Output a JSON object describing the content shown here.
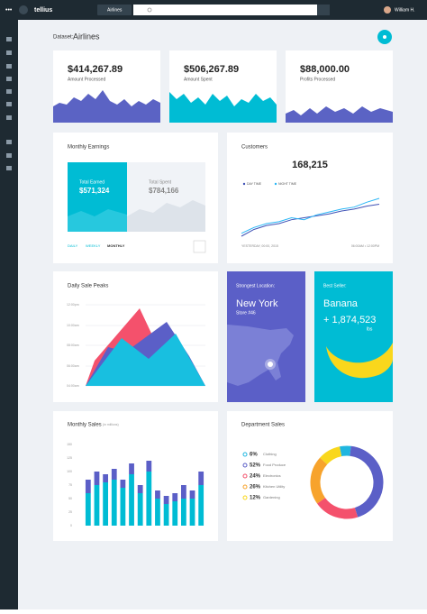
{
  "header": {
    "logo": "tellius",
    "dataset_select": "Airlines",
    "user": "William H."
  },
  "dataset": {
    "label": "Dataset:",
    "name": "Airlines"
  },
  "stats": [
    {
      "value": "$414,267.89",
      "label": "Amount Processed"
    },
    {
      "value": "$506,267.89",
      "label": "Amount Spent"
    },
    {
      "value": "$88,000.00",
      "label": "Profits Processed"
    }
  ],
  "monthly_earnings": {
    "title": "Monthly Earnings",
    "earned_label": "Total Earned",
    "earned": "$571,324",
    "spent_label": "Total Spent",
    "spent": "$784,166",
    "tabs": [
      "DAILY",
      "WEEKLY",
      "MONTHLY"
    ]
  },
  "daily_sale_peaks": {
    "title": "Daily Sale Peaks",
    "y_labels": [
      "12:00pm",
      "10:00am",
      "08:00am",
      "06:00am",
      "04:00am"
    ]
  },
  "strongest_location": {
    "title": "Strongest Location:",
    "city": "New York",
    "store": "Store #46"
  },
  "best_seller": {
    "title": "Best Seller:",
    "product": "Banana",
    "amount": "+ 1,874,523",
    "unit": "lbs"
  },
  "chart_data": [
    {
      "type": "line",
      "title": "Customers",
      "total": "168,215",
      "x_labels": [
        "YESTERDAY, 00:00, 2015",
        "06:00AM • 12:00PM"
      ],
      "series": [
        {
          "name": "DAY TIME",
          "color": "#3f51b5",
          "values": [
            5,
            12,
            16,
            18,
            22,
            24,
            26,
            28,
            31,
            33,
            36,
            38
          ]
        },
        {
          "name": "NIGHT TIME",
          "color": "#29b6f6",
          "values": [
            8,
            14,
            18,
            20,
            24,
            22,
            27,
            30,
            33,
            35,
            40,
            44
          ]
        }
      ]
    },
    {
      "type": "bar",
      "title": "Monthly Sales",
      "subtitle": "(in millions)",
      "stacked": true,
      "ylim": [
        0,
        150
      ],
      "yticks": [
        0,
        25,
        50,
        75,
        100,
        125,
        150
      ],
      "series": [
        {
          "color": "#00bcd4",
          "values": [
            60,
            75,
            80,
            85,
            70,
            95,
            60,
            100,
            50,
            40,
            45,
            50,
            50,
            75
          ]
        },
        {
          "color": "#5b5fc7",
          "values": [
            25,
            25,
            15,
            20,
            15,
            20,
            15,
            20,
            15,
            15,
            15,
            25,
            15,
            25
          ]
        }
      ]
    },
    {
      "type": "pie",
      "donut": true,
      "title": "Department Sales",
      "categories": [
        "Clothing",
        "Food Produce",
        "Electronics",
        "Kitchen Utility",
        "Gardening"
      ],
      "values": [
        6,
        52,
        24,
        26,
        12
      ],
      "value_labels": [
        "6%",
        "52%",
        "24%",
        "26%",
        "12%"
      ],
      "colors": [
        "#1fb6e0",
        "#5b5fc7",
        "#f4516c",
        "#f7a32c",
        "#f9d71c"
      ]
    }
  ]
}
